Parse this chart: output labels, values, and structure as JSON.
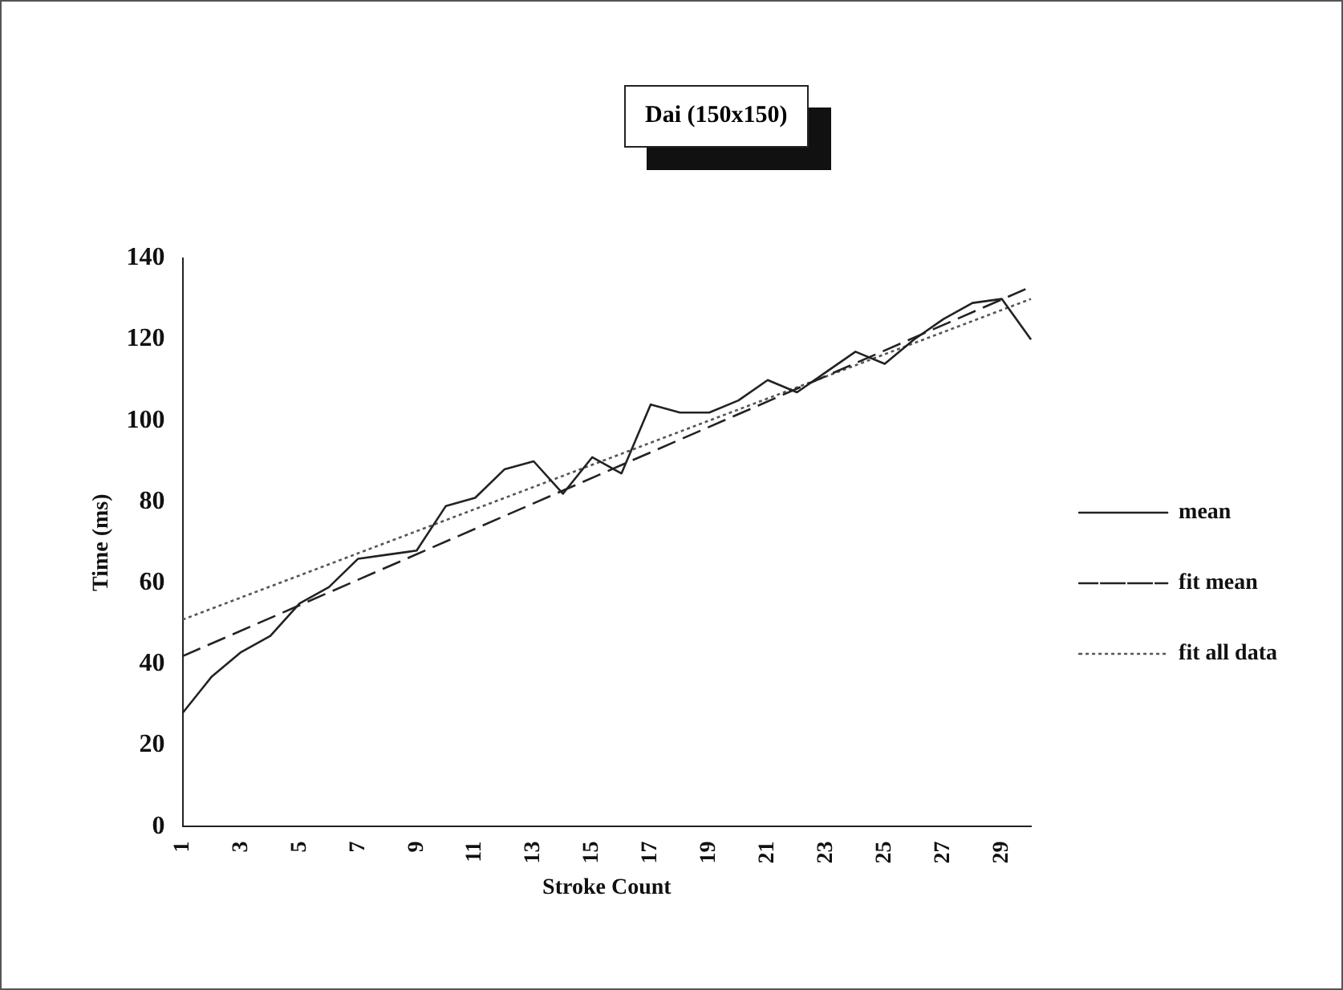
{
  "chart_data": {
    "type": "line",
    "title": "Dai (150x150)",
    "xlabel": "Stroke Count",
    "ylabel": "Time (ms)",
    "categories": [
      "1",
      null,
      "3",
      null,
      "5",
      null,
      "7",
      null,
      "9",
      null,
      "11",
      null,
      "13",
      null,
      "15",
      null,
      "17",
      null,
      "19",
      null,
      "21",
      null,
      "23",
      null,
      "25",
      null,
      "27",
      null,
      "29",
      null
    ],
    "series": [
      {
        "name": "mean",
        "color": "#222222",
        "line_style": "solid",
        "values": [
          28,
          37,
          43,
          47,
          55,
          59,
          66,
          67,
          68,
          79,
          81,
          88,
          90,
          82,
          91,
          87,
          104,
          102,
          102,
          105,
          110,
          107,
          112,
          117,
          114,
          120,
          125,
          129,
          130,
          120
        ]
      },
      {
        "name": "fit mean",
        "color": "#222222",
        "line_style": "dashed",
        "values": [
          42,
          null,
          null,
          null,
          null,
          null,
          null,
          null,
          null,
          null,
          null,
          null,
          null,
          null,
          null,
          null,
          null,
          null,
          null,
          null,
          null,
          null,
          null,
          null,
          null,
          null,
          null,
          null,
          null,
          133
        ]
      },
      {
        "name": "fit all data",
        "color": "#555555",
        "line_style": "dotted",
        "values": [
          51,
          null,
          null,
          null,
          null,
          null,
          null,
          null,
          null,
          null,
          null,
          null,
          null,
          null,
          null,
          null,
          null,
          null,
          null,
          null,
          null,
          null,
          null,
          null,
          null,
          null,
          null,
          null,
          null,
          130
        ]
      }
    ],
    "ylim": [
      0,
      140
    ],
    "yticks": [
      0,
      20,
      40,
      60,
      80,
      100,
      120,
      140
    ],
    "grid": false,
    "legend": "right",
    "marker": "none"
  }
}
